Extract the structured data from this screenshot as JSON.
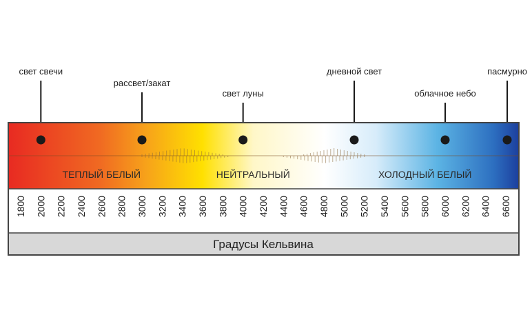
{
  "chart_data": {
    "type": "diagram",
    "axis_unit_label": "Градусы Кельвина",
    "range_k": [
      1800,
      6600
    ],
    "ticks": [
      1800,
      2000,
      2200,
      2400,
      2600,
      2800,
      3000,
      3200,
      3400,
      3600,
      3800,
      4000,
      4200,
      4400,
      4600,
      4800,
      5000,
      5200,
      5400,
      5600,
      5800,
      6000,
      6200,
      6400,
      6600
    ],
    "markers": [
      {
        "label": "свет свечи",
        "kelvin": 2000
      },
      {
        "label": "рассвет/закат",
        "kelvin": 3000
      },
      {
        "label": "свет луны",
        "kelvin": 4000
      },
      {
        "label": "дневной свет",
        "kelvin": 5100
      },
      {
        "label": "облачное небо",
        "kelvin": 6000
      },
      {
        "label": "пасмурно",
        "kelvin": 6600
      }
    ],
    "bands": [
      {
        "label": "ТЕПЛЫЙ БЕЛЫЙ",
        "center_kelvin": 2600
      },
      {
        "label": "НЕЙТРАЛЬНЫЙ",
        "center_kelvin": 4100
      },
      {
        "label": "ХОЛОДНЫЙ БЕЛЫЙ",
        "center_kelvin": 5800
      }
    ],
    "colors": {
      "gradient": [
        "#e82a22",
        "#f06a22",
        "#f7a21a",
        "#ffe000",
        "#fff7c8",
        "#ffffff",
        "#d7ecfa",
        "#5cb4e4",
        "#2d6fc0",
        "#1c3f9e"
      ],
      "marker": "#1a1a1a",
      "frame": "#444444",
      "footer_bg": "#d8d8d8"
    }
  }
}
